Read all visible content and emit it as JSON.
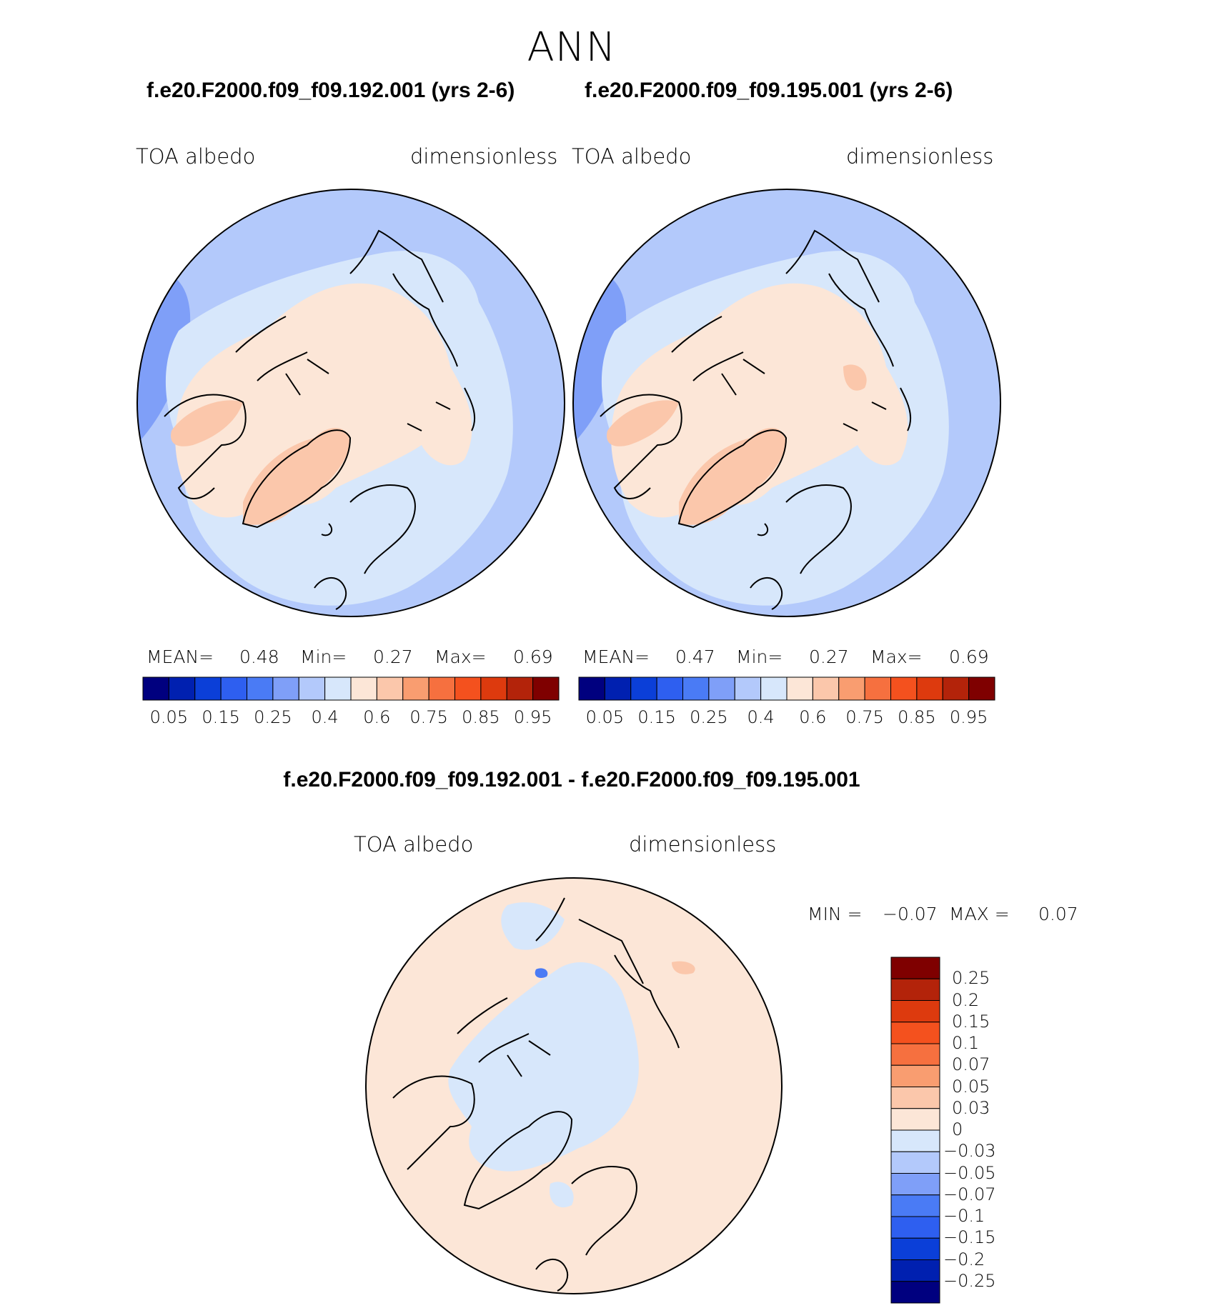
{
  "figure": {
    "title": "ANN",
    "case1_title": "f.e20.F2000.f09_f09.192.001 (yrs 2-6)",
    "case2_title": "f.e20.F2000.f09_f09.195.001 (yrs 2-6)",
    "diff_title": "f.e20.F2000.f09_f09.192.001 - f.e20.F2000.f09_f09.195.001"
  },
  "panels": [
    {
      "variable": "TOA  albedo",
      "units": "dimensionless",
      "stats": {
        "mean_label": "MEAN=",
        "mean": "0.48",
        "min_label": "Min=",
        "min": "0.27",
        "max_label": "Max=",
        "max": "0.69"
      }
    },
    {
      "variable": "TOA  albedo",
      "units": "dimensionless",
      "stats": {
        "mean_label": "MEAN=",
        "mean": "0.47",
        "min_label": "Min=",
        "min": "0.27",
        "max_label": "Max=",
        "max": "0.69"
      }
    }
  ],
  "diff_panel": {
    "variable": "TOA  albedo",
    "units": "dimensionless",
    "min_label": "MIN =",
    "min": "−0.07",
    "max_label": "MAX =",
    "max": "0.07"
  },
  "colorbar": {
    "colors": [
      "#00007f",
      "#0020b0",
      "#0b3fd8",
      "#2e5ff0",
      "#4a7bf5",
      "#7f9ff8",
      "#b3c9fb",
      "#d7e7fb",
      "#fce6d7",
      "#fbc7ab",
      "#f99d70",
      "#f6703f",
      "#f4511e",
      "#dd3a0e",
      "#b3230a",
      "#7f0000"
    ],
    "labels": [
      "0.05",
      "0.15",
      "0.25",
      "0.4",
      "0.6",
      "0.75",
      "0.85",
      "0.95"
    ]
  },
  "diff_colorbar": {
    "colors": [
      "#00007f",
      "#0020b0",
      "#0b3fd8",
      "#2e5ff0",
      "#4a7bf5",
      "#7f9ff8",
      "#b3c9fb",
      "#d7e7fb",
      "#fce6d7",
      "#fbc7ab",
      "#f99d70",
      "#f6703f",
      "#f4511e",
      "#dd3a0e",
      "#b3230a",
      "#7f0000"
    ],
    "labels": [
      "0.25",
      "0.2",
      "0.15",
      "0.1",
      "0.07",
      "0.05",
      "0.03",
      "0",
      "−0.03",
      "−0.05",
      "−0.07",
      "−0.1",
      "−0.15",
      "−0.2",
      "−0.25"
    ]
  },
  "map_colors": {
    "ocean_low": "#b3c9fb",
    "ocean_mid": "#d7e7fb",
    "ocean_deep": "#7f9ff8",
    "land_low": "#fce6d7",
    "land_high": "#fbc7ab",
    "diff_pos": "#fce6d7",
    "diff_neg": "#d7e7fb",
    "diff_neg2": "#b3c9fb",
    "diff_blue": "#4a7bf5",
    "diff_orange": "#fbc7ab",
    "coast": "#000000"
  }
}
